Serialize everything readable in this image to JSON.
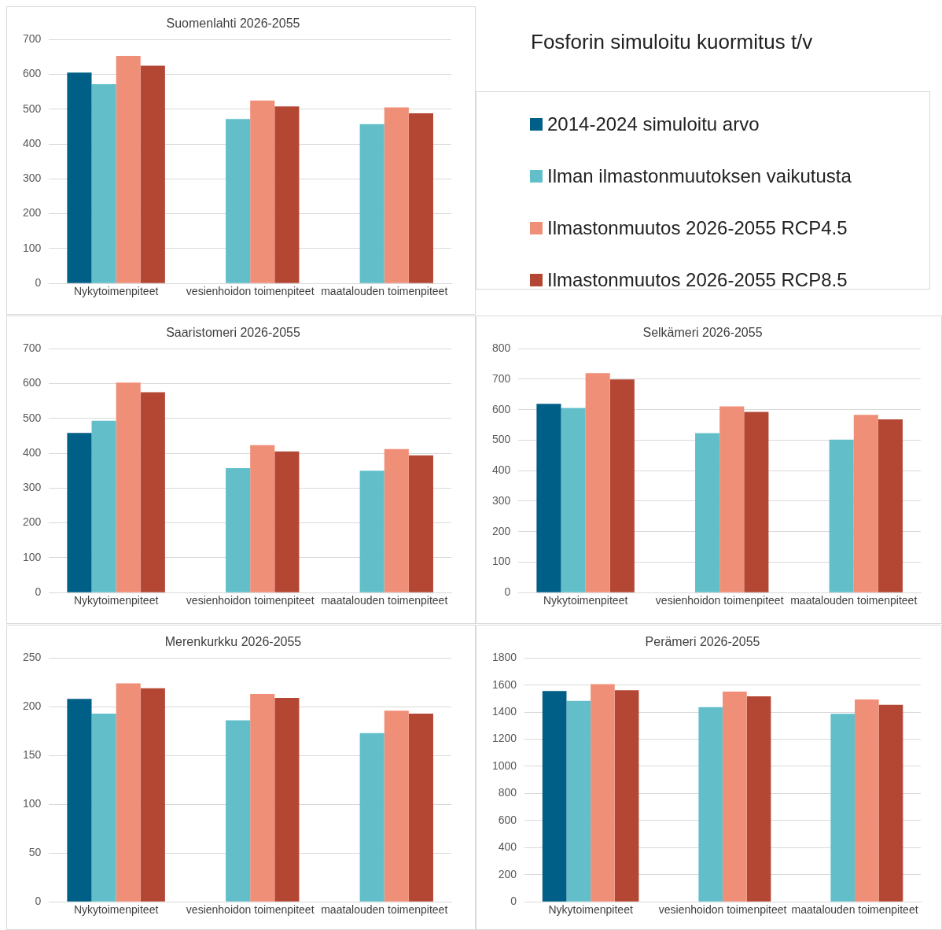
{
  "chart_data": [
    {
      "type": "bar",
      "title": "Suomenlahti 2026-2055",
      "categories": [
        "Nykytoimenpiteet",
        "vesienhoidon toimenpiteet",
        "maatalouden toimenpiteet"
      ],
      "series": [
        {
          "name": "2014-2024 simuloitu arvo",
          "color": "#005f87",
          "values": [
            605,
            null,
            null
          ]
        },
        {
          "name": "Ilman ilmastonmuutoksen vaikutusta",
          "color": "#62bfca",
          "values": [
            572,
            472,
            457
          ]
        },
        {
          "name": "Ilmastonmuutos 2026-2055 RCP4.5",
          "color": "#f08f78",
          "values": [
            653,
            525,
            505
          ]
        },
        {
          "name": "Ilmastonmuutos 2026-2055 RCP8.5",
          "color": "#b44734",
          "values": [
            625,
            508,
            488
          ]
        }
      ],
      "ylim": [
        0,
        700
      ],
      "yticks": [
        0,
        100,
        200,
        300,
        400,
        500,
        600,
        700
      ],
      "grid": "y",
      "legend": "right"
    },
    {
      "type": "other",
      "title": "Fosforin simuloitu kuormitus t/v"
    },
    {
      "type": "bar",
      "title": "Saaristomeri 2026-2055",
      "categories": [
        "Nykytoimenpiteet",
        "vesienhoidon toimenpiteet",
        "maatalouden toimenpiteet"
      ],
      "series": [
        {
          "color": "#005f87",
          "values": [
            458,
            null,
            null
          ]
        },
        {
          "color": "#62bfca",
          "values": [
            493,
            357,
            350
          ]
        },
        {
          "color": "#f08f78",
          "values": [
            603,
            423,
            412
          ]
        },
        {
          "color": "#b44734",
          "values": [
            575,
            405,
            394
          ]
        }
      ],
      "ylim": [
        0,
        700
      ],
      "yticks": [
        0,
        100,
        200,
        300,
        400,
        500,
        600,
        700
      ],
      "grid": "y"
    },
    {
      "type": "bar",
      "title": "Selkämeri 2026-2055",
      "categories": [
        "Nykytoimenpiteet",
        "vesienhoidon toimenpiteet",
        "maatalouden toimenpiteet"
      ],
      "series": [
        {
          "color": "#005f87",
          "values": [
            619,
            null,
            null
          ]
        },
        {
          "color": "#62bfca",
          "values": [
            606,
            523,
            502
          ]
        },
        {
          "color": "#f08f78",
          "values": [
            720,
            611,
            583
          ]
        },
        {
          "color": "#b44734",
          "values": [
            699,
            593,
            568
          ]
        }
      ],
      "ylim": [
        0,
        800
      ],
      "yticks": [
        0,
        100,
        200,
        300,
        400,
        500,
        600,
        700,
        800
      ],
      "grid": "y"
    },
    {
      "type": "bar",
      "title": "Merenkurkku 2026-2055",
      "categories": [
        "Nykytoimenpiteet",
        "vesienhoidon toimenpiteet",
        "maatalouden toimenpiteet"
      ],
      "series": [
        {
          "color": "#005f87",
          "values": [
            208,
            null,
            null
          ]
        },
        {
          "color": "#62bfca",
          "values": [
            193,
            186,
            173
          ]
        },
        {
          "color": "#f08f78",
          "values": [
            224,
            213,
            196
          ]
        },
        {
          "color": "#b44734",
          "values": [
            219,
            209,
            193
          ]
        }
      ],
      "ylim": [
        0,
        250
      ],
      "yticks": [
        0,
        50,
        100,
        150,
        200,
        250
      ],
      "grid": "y"
    },
    {
      "type": "bar",
      "title": "Perämeri 2026-2055",
      "categories": [
        "Nykytoimenpiteet",
        "vesienhoidon toimenpiteet",
        "maatalouden toimenpiteet"
      ],
      "series": [
        {
          "color": "#005f87",
          "values": [
            1556,
            null,
            null
          ]
        },
        {
          "color": "#62bfca",
          "values": [
            1483,
            1437,
            1387
          ]
        },
        {
          "color": "#f08f78",
          "values": [
            1607,
            1551,
            1494
          ]
        },
        {
          "color": "#b44734",
          "values": [
            1562,
            1517,
            1454
          ]
        }
      ],
      "ylim": [
        0,
        1800
      ],
      "yticks": [
        0,
        200,
        400,
        600,
        800,
        1000,
        1200,
        1400,
        1600,
        1800
      ],
      "grid": "y"
    }
  ]
}
